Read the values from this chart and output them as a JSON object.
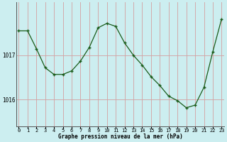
{
  "x": [
    0,
    1,
    2,
    3,
    4,
    5,
    6,
    7,
    8,
    9,
    10,
    11,
    12,
    13,
    14,
    15,
    16,
    17,
    18,
    19,
    20,
    21,
    22,
    23
  ],
  "y": [
    1017.55,
    1017.55,
    1017.15,
    1016.72,
    1016.57,
    1016.57,
    1016.65,
    1016.87,
    1017.18,
    1017.62,
    1017.72,
    1017.65,
    1017.28,
    1017.0,
    1016.78,
    1016.52,
    1016.32,
    1016.08,
    1015.98,
    1015.82,
    1015.88,
    1016.28,
    1017.08,
    1017.82
  ],
  "yticks": [
    1016,
    1017
  ],
  "xticks": [
    0,
    1,
    2,
    3,
    4,
    5,
    6,
    7,
    8,
    9,
    10,
    11,
    12,
    13,
    14,
    15,
    16,
    17,
    18,
    19,
    20,
    21,
    22,
    23
  ],
  "xlabel": "Graphe pression niveau de la mer (hPa)",
  "line_color": "#1a5c1a",
  "marker_color": "#1a5c1a",
  "bg_color": "#cceef0",
  "vgrid_color": "#d4a0a0",
  "hgrid_color": "#d4a0a0",
  "ylim": [
    1015.4,
    1018.2
  ],
  "xlim": [
    -0.3,
    23.3
  ]
}
